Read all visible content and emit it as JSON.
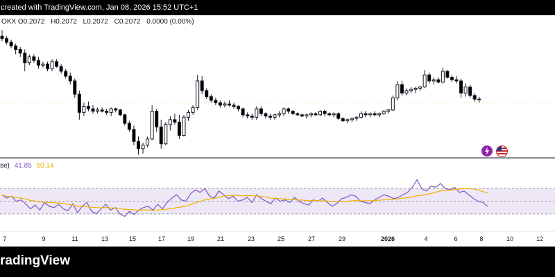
{
  "header": {
    "caption": "created with TradingView.com, Jan 08, 2026 15:52 UTC+1"
  },
  "ohlc": {
    "symbol": "OKX",
    "o_label": "O",
    "o": "0.2072",
    "h_label": "H",
    "h": "0.2072",
    "l_label": "L",
    "l": "0.2072",
    "c_label": "C",
    "c": "0.2072",
    "change": "0.0000 (0.00%)"
  },
  "rsi": {
    "label": "se)",
    "value": "41.85",
    "ma_value": "50.14"
  },
  "footer": {
    "brand": "radingView"
  },
  "colors": {
    "up": "#ffffff",
    "down": "#000000",
    "rsi_line": "#7e57c2",
    "rsi_ma": "#f2b200",
    "rsi_band": "#ede7f6"
  },
  "chart_data": [
    {
      "type": "candlestick",
      "x_ticks": [
        "7",
        "9",
        "11",
        "13",
        "15",
        "17",
        "19",
        "21",
        "23",
        "25",
        "27",
        "29",
        "2026",
        "4",
        "6",
        "8",
        "10",
        "12"
      ],
      "y_scale": "not shown",
      "candles": [
        {
          "o": 0.95,
          "h": 1.0,
          "l": 0.91,
          "c": 0.93
        },
        {
          "o": 0.93,
          "h": 0.95,
          "l": 0.88,
          "c": 0.9
        },
        {
          "o": 0.9,
          "h": 0.92,
          "l": 0.85,
          "c": 0.87
        },
        {
          "o": 0.87,
          "h": 0.89,
          "l": 0.8,
          "c": 0.84
        },
        {
          "o": 0.84,
          "h": 0.86,
          "l": 0.78,
          "c": 0.81
        },
        {
          "o": 0.81,
          "h": 0.84,
          "l": 0.66,
          "c": 0.73
        },
        {
          "o": 0.73,
          "h": 0.8,
          "l": 0.71,
          "c": 0.78
        },
        {
          "o": 0.78,
          "h": 0.8,
          "l": 0.73,
          "c": 0.75
        },
        {
          "o": 0.75,
          "h": 0.78,
          "l": 0.68,
          "c": 0.71
        },
        {
          "o": 0.71,
          "h": 0.74,
          "l": 0.69,
          "c": 0.72
        },
        {
          "o": 0.72,
          "h": 0.74,
          "l": 0.66,
          "c": 0.68
        },
        {
          "o": 0.68,
          "h": 0.76,
          "l": 0.66,
          "c": 0.74
        },
        {
          "o": 0.74,
          "h": 0.76,
          "l": 0.69,
          "c": 0.7
        },
        {
          "o": 0.7,
          "h": 0.72,
          "l": 0.64,
          "c": 0.66
        },
        {
          "o": 0.66,
          "h": 0.68,
          "l": 0.6,
          "c": 0.62
        },
        {
          "o": 0.62,
          "h": 0.65,
          "l": 0.55,
          "c": 0.58
        },
        {
          "o": 0.58,
          "h": 0.6,
          "l": 0.44,
          "c": 0.47
        },
        {
          "o": 0.47,
          "h": 0.5,
          "l": 0.26,
          "c": 0.32
        },
        {
          "o": 0.32,
          "h": 0.4,
          "l": 0.29,
          "c": 0.37
        },
        {
          "o": 0.37,
          "h": 0.41,
          "l": 0.33,
          "c": 0.35
        },
        {
          "o": 0.35,
          "h": 0.38,
          "l": 0.31,
          "c": 0.33
        },
        {
          "o": 0.33,
          "h": 0.36,
          "l": 0.31,
          "c": 0.34
        },
        {
          "o": 0.34,
          "h": 0.36,
          "l": 0.32,
          "c": 0.33
        },
        {
          "o": 0.33,
          "h": 0.35,
          "l": 0.3,
          "c": 0.32
        },
        {
          "o": 0.32,
          "h": 0.36,
          "l": 0.29,
          "c": 0.35
        },
        {
          "o": 0.35,
          "h": 0.36,
          "l": 0.32,
          "c": 0.34
        },
        {
          "o": 0.34,
          "h": 0.35,
          "l": 0.29,
          "c": 0.3
        },
        {
          "o": 0.3,
          "h": 0.31,
          "l": 0.21,
          "c": 0.23
        },
        {
          "o": 0.23,
          "h": 0.25,
          "l": 0.16,
          "c": 0.18
        },
        {
          "o": 0.18,
          "h": 0.21,
          "l": 0.05,
          "c": 0.08
        },
        {
          "o": 0.08,
          "h": 0.12,
          "l": -0.03,
          "c": 0.02
        },
        {
          "o": 0.02,
          "h": 0.07,
          "l": -0.02,
          "c": 0.05
        },
        {
          "o": 0.05,
          "h": 0.12,
          "l": 0.03,
          "c": 0.1
        },
        {
          "o": 0.1,
          "h": 0.38,
          "l": 0.09,
          "c": 0.33
        },
        {
          "o": 0.33,
          "h": 0.35,
          "l": 0.16,
          "c": 0.2
        },
        {
          "o": 0.2,
          "h": 0.26,
          "l": 0.02,
          "c": 0.06
        },
        {
          "o": 0.06,
          "h": 0.24,
          "l": 0.05,
          "c": 0.22
        },
        {
          "o": 0.22,
          "h": 0.29,
          "l": 0.17,
          "c": 0.26
        },
        {
          "o": 0.26,
          "h": 0.31,
          "l": 0.22,
          "c": 0.24
        },
        {
          "o": 0.24,
          "h": 0.3,
          "l": 0.1,
          "c": 0.13
        },
        {
          "o": 0.13,
          "h": 0.3,
          "l": 0.12,
          "c": 0.28
        },
        {
          "o": 0.28,
          "h": 0.34,
          "l": 0.25,
          "c": 0.32
        },
        {
          "o": 0.32,
          "h": 0.38,
          "l": 0.3,
          "c": 0.36
        },
        {
          "o": 0.36,
          "h": 0.63,
          "l": 0.34,
          "c": 0.58
        },
        {
          "o": 0.58,
          "h": 0.62,
          "l": 0.47,
          "c": 0.5
        },
        {
          "o": 0.5,
          "h": 0.52,
          "l": 0.43,
          "c": 0.45
        },
        {
          "o": 0.45,
          "h": 0.47,
          "l": 0.4,
          "c": 0.42
        },
        {
          "o": 0.42,
          "h": 0.44,
          "l": 0.38,
          "c": 0.4
        },
        {
          "o": 0.4,
          "h": 0.42,
          "l": 0.36,
          "c": 0.38
        },
        {
          "o": 0.38,
          "h": 0.41,
          "l": 0.36,
          "c": 0.39
        },
        {
          "o": 0.39,
          "h": 0.42,
          "l": 0.37,
          "c": 0.38
        },
        {
          "o": 0.38,
          "h": 0.4,
          "l": 0.35,
          "c": 0.37
        },
        {
          "o": 0.37,
          "h": 0.38,
          "l": 0.33,
          "c": 0.35
        },
        {
          "o": 0.35,
          "h": 0.36,
          "l": 0.28,
          "c": 0.3
        },
        {
          "o": 0.3,
          "h": 0.32,
          "l": 0.27,
          "c": 0.29
        },
        {
          "o": 0.29,
          "h": 0.31,
          "l": 0.26,
          "c": 0.28
        },
        {
          "o": 0.28,
          "h": 0.37,
          "l": 0.26,
          "c": 0.35
        },
        {
          "o": 0.35,
          "h": 0.37,
          "l": 0.29,
          "c": 0.31
        },
        {
          "o": 0.31,
          "h": 0.32,
          "l": 0.27,
          "c": 0.29
        },
        {
          "o": 0.29,
          "h": 0.31,
          "l": 0.26,
          "c": 0.28
        },
        {
          "o": 0.28,
          "h": 0.31,
          "l": 0.26,
          "c": 0.3
        },
        {
          "o": 0.3,
          "h": 0.33,
          "l": 0.28,
          "c": 0.31
        },
        {
          "o": 0.31,
          "h": 0.36,
          "l": 0.29,
          "c": 0.35
        },
        {
          "o": 0.35,
          "h": 0.36,
          "l": 0.31,
          "c": 0.33
        },
        {
          "o": 0.33,
          "h": 0.34,
          "l": 0.3,
          "c": 0.31
        },
        {
          "o": 0.31,
          "h": 0.32,
          "l": 0.29,
          "c": 0.3
        },
        {
          "o": 0.3,
          "h": 0.31,
          "l": 0.28,
          "c": 0.29
        },
        {
          "o": 0.29,
          "h": 0.31,
          "l": 0.27,
          "c": 0.3
        },
        {
          "o": 0.3,
          "h": 0.32,
          "l": 0.28,
          "c": 0.31
        },
        {
          "o": 0.31,
          "h": 0.32,
          "l": 0.29,
          "c": 0.3
        },
        {
          "o": 0.3,
          "h": 0.34,
          "l": 0.29,
          "c": 0.33
        },
        {
          "o": 0.33,
          "h": 0.34,
          "l": 0.29,
          "c": 0.31
        },
        {
          "o": 0.31,
          "h": 0.32,
          "l": 0.29,
          "c": 0.3
        },
        {
          "o": 0.3,
          "h": 0.32,
          "l": 0.28,
          "c": 0.31
        },
        {
          "o": 0.31,
          "h": 0.32,
          "l": 0.26,
          "c": 0.27
        },
        {
          "o": 0.27,
          "h": 0.28,
          "l": 0.24,
          "c": 0.25
        },
        {
          "o": 0.25,
          "h": 0.27,
          "l": 0.23,
          "c": 0.26
        },
        {
          "o": 0.26,
          "h": 0.28,
          "l": 0.24,
          "c": 0.27
        },
        {
          "o": 0.27,
          "h": 0.29,
          "l": 0.25,
          "c": 0.28
        },
        {
          "o": 0.28,
          "h": 0.33,
          "l": 0.27,
          "c": 0.31
        },
        {
          "o": 0.31,
          "h": 0.33,
          "l": 0.28,
          "c": 0.3
        },
        {
          "o": 0.3,
          "h": 0.32,
          "l": 0.28,
          "c": 0.31
        },
        {
          "o": 0.31,
          "h": 0.33,
          "l": 0.29,
          "c": 0.3
        },
        {
          "o": 0.3,
          "h": 0.32,
          "l": 0.28,
          "c": 0.31
        },
        {
          "o": 0.31,
          "h": 0.34,
          "l": 0.3,
          "c": 0.33
        },
        {
          "o": 0.33,
          "h": 0.35,
          "l": 0.31,
          "c": 0.34
        },
        {
          "o": 0.34,
          "h": 0.46,
          "l": 0.33,
          "c": 0.44
        },
        {
          "o": 0.44,
          "h": 0.58,
          "l": 0.42,
          "c": 0.55
        },
        {
          "o": 0.55,
          "h": 0.58,
          "l": 0.46,
          "c": 0.48
        },
        {
          "o": 0.48,
          "h": 0.52,
          "l": 0.46,
          "c": 0.5
        },
        {
          "o": 0.5,
          "h": 0.53,
          "l": 0.48,
          "c": 0.51
        },
        {
          "o": 0.51,
          "h": 0.53,
          "l": 0.48,
          "c": 0.52
        },
        {
          "o": 0.52,
          "h": 0.54,
          "l": 0.5,
          "c": 0.53
        },
        {
          "o": 0.53,
          "h": 0.67,
          "l": 0.52,
          "c": 0.63
        },
        {
          "o": 0.63,
          "h": 0.65,
          "l": 0.56,
          "c": 0.58
        },
        {
          "o": 0.58,
          "h": 0.61,
          "l": 0.55,
          "c": 0.59
        },
        {
          "o": 0.59,
          "h": 0.61,
          "l": 0.56,
          "c": 0.57
        },
        {
          "o": 0.57,
          "h": 0.69,
          "l": 0.56,
          "c": 0.66
        },
        {
          "o": 0.66,
          "h": 0.67,
          "l": 0.6,
          "c": 0.61
        },
        {
          "o": 0.61,
          "h": 0.63,
          "l": 0.57,
          "c": 0.59
        },
        {
          "o": 0.59,
          "h": 0.62,
          "l": 0.56,
          "c": 0.58
        },
        {
          "o": 0.58,
          "h": 0.6,
          "l": 0.44,
          "c": 0.48
        },
        {
          "o": 0.48,
          "h": 0.56,
          "l": 0.45,
          "c": 0.53
        },
        {
          "o": 0.53,
          "h": 0.55,
          "l": 0.44,
          "c": 0.46
        },
        {
          "o": 0.46,
          "h": 0.48,
          "l": 0.41,
          "c": 0.43
        },
        {
          "o": 0.43,
          "h": 0.45,
          "l": 0.4,
          "c": 0.43
        }
      ],
      "rsi": [
        60,
        55,
        58,
        50,
        52,
        46,
        38,
        44,
        36,
        48,
        42,
        40,
        45,
        38,
        35,
        46,
        32,
        42,
        48,
        34,
        30,
        38,
        45,
        36,
        40,
        30,
        26,
        34,
        29,
        36,
        40,
        42,
        36,
        45,
        38,
        48,
        55,
        60,
        52,
        50,
        62,
        68,
        64,
        70,
        58,
        55,
        66,
        60,
        54,
        58,
        50,
        52,
        56,
        48,
        60,
        54,
        50,
        46,
        55,
        50,
        52,
        48,
        56,
        50,
        46,
        44,
        52,
        50,
        55,
        48,
        42,
        46,
        54,
        56,
        60,
        58,
        50,
        48,
        46,
        52,
        56,
        60,
        58,
        54,
        56,
        60,
        64,
        72,
        84,
        70,
        66,
        74,
        72,
        78,
        70,
        68,
        72,
        64,
        66,
        60,
        54,
        50,
        48,
        42
      ],
      "rsi_ma_levels": [
        70,
        50,
        30
      ]
    }
  ]
}
